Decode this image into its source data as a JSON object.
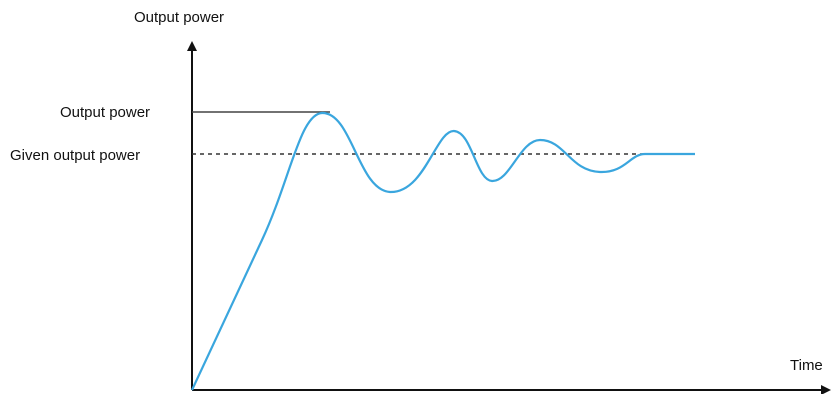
{
  "labels": {
    "y_axis": "Output power",
    "level_upper": "Output power",
    "level_given": "Given output power",
    "x_axis": "Time"
  },
  "colors": {
    "axis": "#111111",
    "response_curve": "#3aa6de",
    "reference_line": "#333333",
    "upper_line": "#444444"
  }
}
